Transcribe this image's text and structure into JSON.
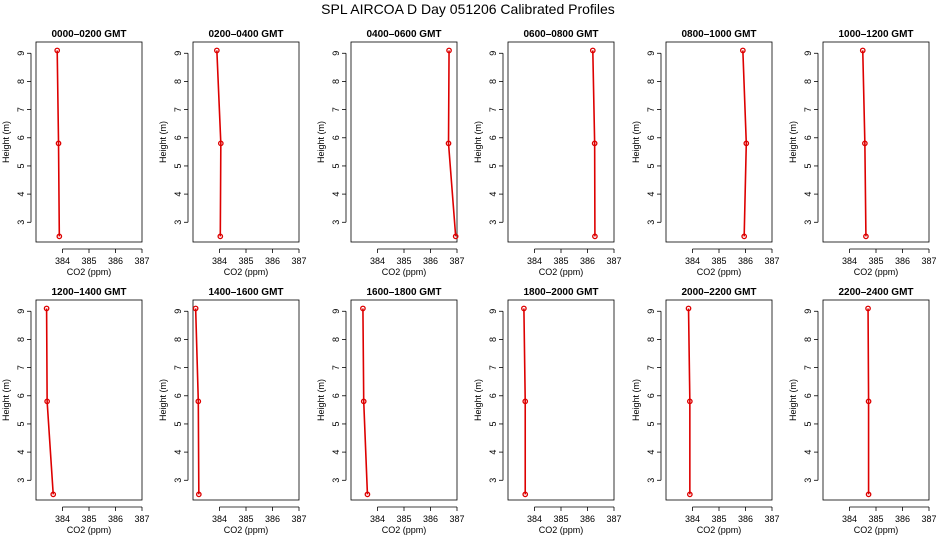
{
  "title": "SPL AIRCOA D  Day 051206  Calibrated Profiles",
  "colors": {
    "profile": "#dd0000",
    "axis": "#000000",
    "background": "#ffffff"
  },
  "chart_data": [
    {
      "type": "line",
      "title": "0000–0200 GMT",
      "xlabel": "CO2 (ppm)",
      "ylabel": "Height (m)",
      "xlim": [
        383,
        387
      ],
      "ylim": [
        2.3,
        9.4
      ],
      "xticks": [
        384,
        385,
        386,
        387
      ],
      "yticks": [
        3,
        4,
        5,
        6,
        7,
        8,
        9
      ],
      "grid": false,
      "legend": "none",
      "series": [
        {
          "x": [
            383.8,
            383.85,
            383.88
          ],
          "y": [
            9.1,
            5.8,
            2.5
          ]
        }
      ]
    },
    {
      "type": "line",
      "title": "0200–0400 GMT",
      "xlabel": "CO2 (ppm)",
      "ylabel": "Height (m)",
      "xlim": [
        383,
        387
      ],
      "ylim": [
        2.3,
        9.4
      ],
      "xticks": [
        384,
        385,
        386,
        387
      ],
      "yticks": [
        3,
        4,
        5,
        6,
        7,
        8,
        9
      ],
      "grid": false,
      "legend": "none",
      "series": [
        {
          "x": [
            383.9,
            384.05,
            384.03
          ],
          "y": [
            9.1,
            5.8,
            2.5
          ]
        }
      ]
    },
    {
      "type": "line",
      "title": "0400–0600 GMT",
      "xlabel": "CO2 (ppm)",
      "ylabel": "Height (m)",
      "xlim": [
        383,
        387
      ],
      "ylim": [
        2.3,
        9.4
      ],
      "xticks": [
        384,
        385,
        386,
        387
      ],
      "yticks": [
        3,
        4,
        5,
        6,
        7,
        8,
        9
      ],
      "grid": false,
      "legend": "none",
      "series": [
        {
          "x": [
            386.7,
            386.68,
            386.95
          ],
          "y": [
            9.1,
            5.8,
            2.5
          ]
        }
      ]
    },
    {
      "type": "line",
      "title": "0600–0800 GMT",
      "xlabel": "CO2 (ppm)",
      "ylabel": "Height (m)",
      "xlim": [
        383,
        387
      ],
      "ylim": [
        2.3,
        9.4
      ],
      "xticks": [
        384,
        385,
        386,
        387
      ],
      "yticks": [
        3,
        4,
        5,
        6,
        7,
        8,
        9
      ],
      "grid": false,
      "legend": "none",
      "series": [
        {
          "x": [
            386.2,
            386.27,
            386.28
          ],
          "y": [
            9.1,
            5.8,
            2.5
          ]
        }
      ]
    },
    {
      "type": "line",
      "title": "0800–1000 GMT",
      "xlabel": "CO2 (ppm)",
      "ylabel": "Height (m)",
      "xlim": [
        383,
        387
      ],
      "ylim": [
        2.3,
        9.4
      ],
      "xticks": [
        384,
        385,
        386,
        387
      ],
      "yticks": [
        3,
        4,
        5,
        6,
        7,
        8,
        9
      ],
      "grid": false,
      "legend": "none",
      "series": [
        {
          "x": [
            385.9,
            386.03,
            385.95
          ],
          "y": [
            9.1,
            5.8,
            2.5
          ]
        }
      ]
    },
    {
      "type": "line",
      "title": "1000–1200 GMT",
      "xlabel": "CO2 (ppm)",
      "ylabel": "Height (m)",
      "xlim": [
        383,
        387
      ],
      "ylim": [
        2.3,
        9.4
      ],
      "xticks": [
        384,
        385,
        386,
        387
      ],
      "yticks": [
        3,
        4,
        5,
        6,
        7,
        8,
        9
      ],
      "grid": false,
      "legend": "none",
      "series": [
        {
          "x": [
            384.5,
            384.58,
            384.62
          ],
          "y": [
            9.1,
            5.8,
            2.5
          ]
        }
      ]
    },
    {
      "type": "line",
      "title": "1200–1400 GMT",
      "xlabel": "CO2 (ppm)",
      "ylabel": "Height (m)",
      "xlim": [
        383,
        387
      ],
      "ylim": [
        2.3,
        9.4
      ],
      "xticks": [
        384,
        385,
        386,
        387
      ],
      "yticks": [
        3,
        4,
        5,
        6,
        7,
        8,
        9
      ],
      "grid": false,
      "legend": "none",
      "series": [
        {
          "x": [
            383.4,
            383.42,
            383.65
          ],
          "y": [
            9.1,
            5.8,
            2.5
          ]
        }
      ]
    },
    {
      "type": "line",
      "title": "1400–1600 GMT",
      "xlabel": "CO2 (ppm)",
      "ylabel": "Height (m)",
      "xlim": [
        383,
        387
      ],
      "ylim": [
        2.3,
        9.4
      ],
      "xticks": [
        384,
        385,
        386,
        387
      ],
      "yticks": [
        3,
        4,
        5,
        6,
        7,
        8,
        9
      ],
      "grid": false,
      "legend": "none",
      "series": [
        {
          "x": [
            383.1,
            383.2,
            383.22
          ],
          "y": [
            9.1,
            5.8,
            2.5
          ]
        }
      ]
    },
    {
      "type": "line",
      "title": "1600–1800 GMT",
      "xlabel": "CO2 (ppm)",
      "ylabel": "Height (m)",
      "xlim": [
        383,
        387
      ],
      "ylim": [
        2.3,
        9.4
      ],
      "xticks": [
        384,
        385,
        386,
        387
      ],
      "yticks": [
        3,
        4,
        5,
        6,
        7,
        8,
        9
      ],
      "grid": false,
      "legend": "none",
      "series": [
        {
          "x": [
            383.45,
            383.48,
            383.62
          ],
          "y": [
            9.1,
            5.8,
            2.5
          ]
        }
      ]
    },
    {
      "type": "line",
      "title": "1800–2000 GMT",
      "xlabel": "CO2 (ppm)",
      "ylabel": "Height (m)",
      "xlim": [
        383,
        387
      ],
      "ylim": [
        2.3,
        9.4
      ],
      "xticks": [
        384,
        385,
        386,
        387
      ],
      "yticks": [
        3,
        4,
        5,
        6,
        7,
        8,
        9
      ],
      "grid": false,
      "legend": "none",
      "series": [
        {
          "x": [
            383.6,
            383.65,
            383.65
          ],
          "y": [
            9.1,
            5.8,
            2.5
          ]
        }
      ]
    },
    {
      "type": "line",
      "title": "2000–2200 GMT",
      "xlabel": "CO2 (ppm)",
      "ylabel": "Height (m)",
      "xlim": [
        383,
        387
      ],
      "ylim": [
        2.3,
        9.4
      ],
      "xticks": [
        384,
        385,
        386,
        387
      ],
      "yticks": [
        3,
        4,
        5,
        6,
        7,
        8,
        9
      ],
      "grid": false,
      "legend": "none",
      "series": [
        {
          "x": [
            383.85,
            383.9,
            383.9
          ],
          "y": [
            9.1,
            5.8,
            2.5
          ]
        }
      ]
    },
    {
      "type": "line",
      "title": "2200–2400 GMT",
      "xlabel": "CO2 (ppm)",
      "ylabel": "Height (m)",
      "xlim": [
        383,
        387
      ],
      "ylim": [
        2.3,
        9.4
      ],
      "xticks": [
        384,
        385,
        386,
        387
      ],
      "yticks": [
        3,
        4,
        5,
        6,
        7,
        8,
        9
      ],
      "grid": false,
      "legend": "none",
      "series": [
        {
          "x": [
            384.7,
            384.72,
            384.72
          ],
          "y": [
            9.1,
            5.8,
            2.5
          ]
        }
      ]
    }
  ]
}
